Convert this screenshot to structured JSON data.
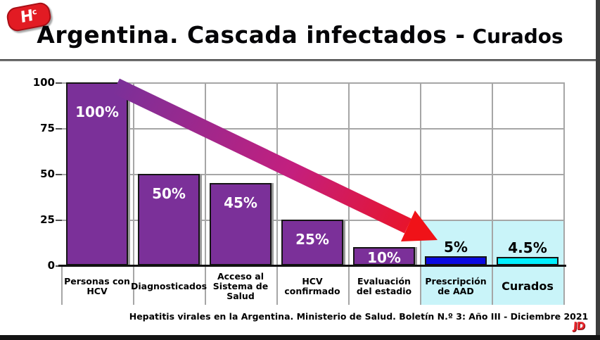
{
  "logo": {
    "letter": "H",
    "superscript": "c"
  },
  "header": {
    "title_main": "Argentina. Cascada infectados -",
    "title_sub": "Curados"
  },
  "footer": {
    "source": "Hepatitis virales en la Argentina. Ministerio de Salud. Boletín N.º 3: Año III - Diciembre 2021",
    "signature": "JD"
  },
  "chart_data": {
    "type": "bar",
    "title": "Argentina. Cascada infectados - Curados",
    "xlabel": "",
    "ylabel": "",
    "ylim": [
      0,
      100
    ],
    "y_ticks": [
      0,
      25,
      50,
      75,
      100
    ],
    "grid": true,
    "legend": "none",
    "categories": [
      "Personas con HCV",
      "Diagnosticados",
      "Acceso al Sistema de Salud",
      "HCV confirmado",
      "Evaluación del estadio",
      "Prescripción de AAD",
      "Curados"
    ],
    "values": [
      100,
      50,
      45,
      25,
      10,
      5,
      4.5
    ],
    "bar_labels": [
      "100%",
      "50%",
      "45%",
      "25%",
      "10%",
      "5%",
      "4.5%"
    ],
    "bar_colors": [
      "#7B3099",
      "#7B3099",
      "#7B3099",
      "#7B3099",
      "#7B3099",
      "#0A0AE0",
      "#00F0FF"
    ],
    "emphasized_category": "Curados",
    "highlight": {
      "from_category": "Prescripción de AAD",
      "background": "#C9F4F9",
      "top_value": 25
    },
    "annotation_arrow": {
      "from_category": "Personas con HCV",
      "to_category": "Prescripción de AAD",
      "color_start": "#7B3099",
      "color_mid": "#C41F7E",
      "color_end": "#F01218"
    }
  }
}
